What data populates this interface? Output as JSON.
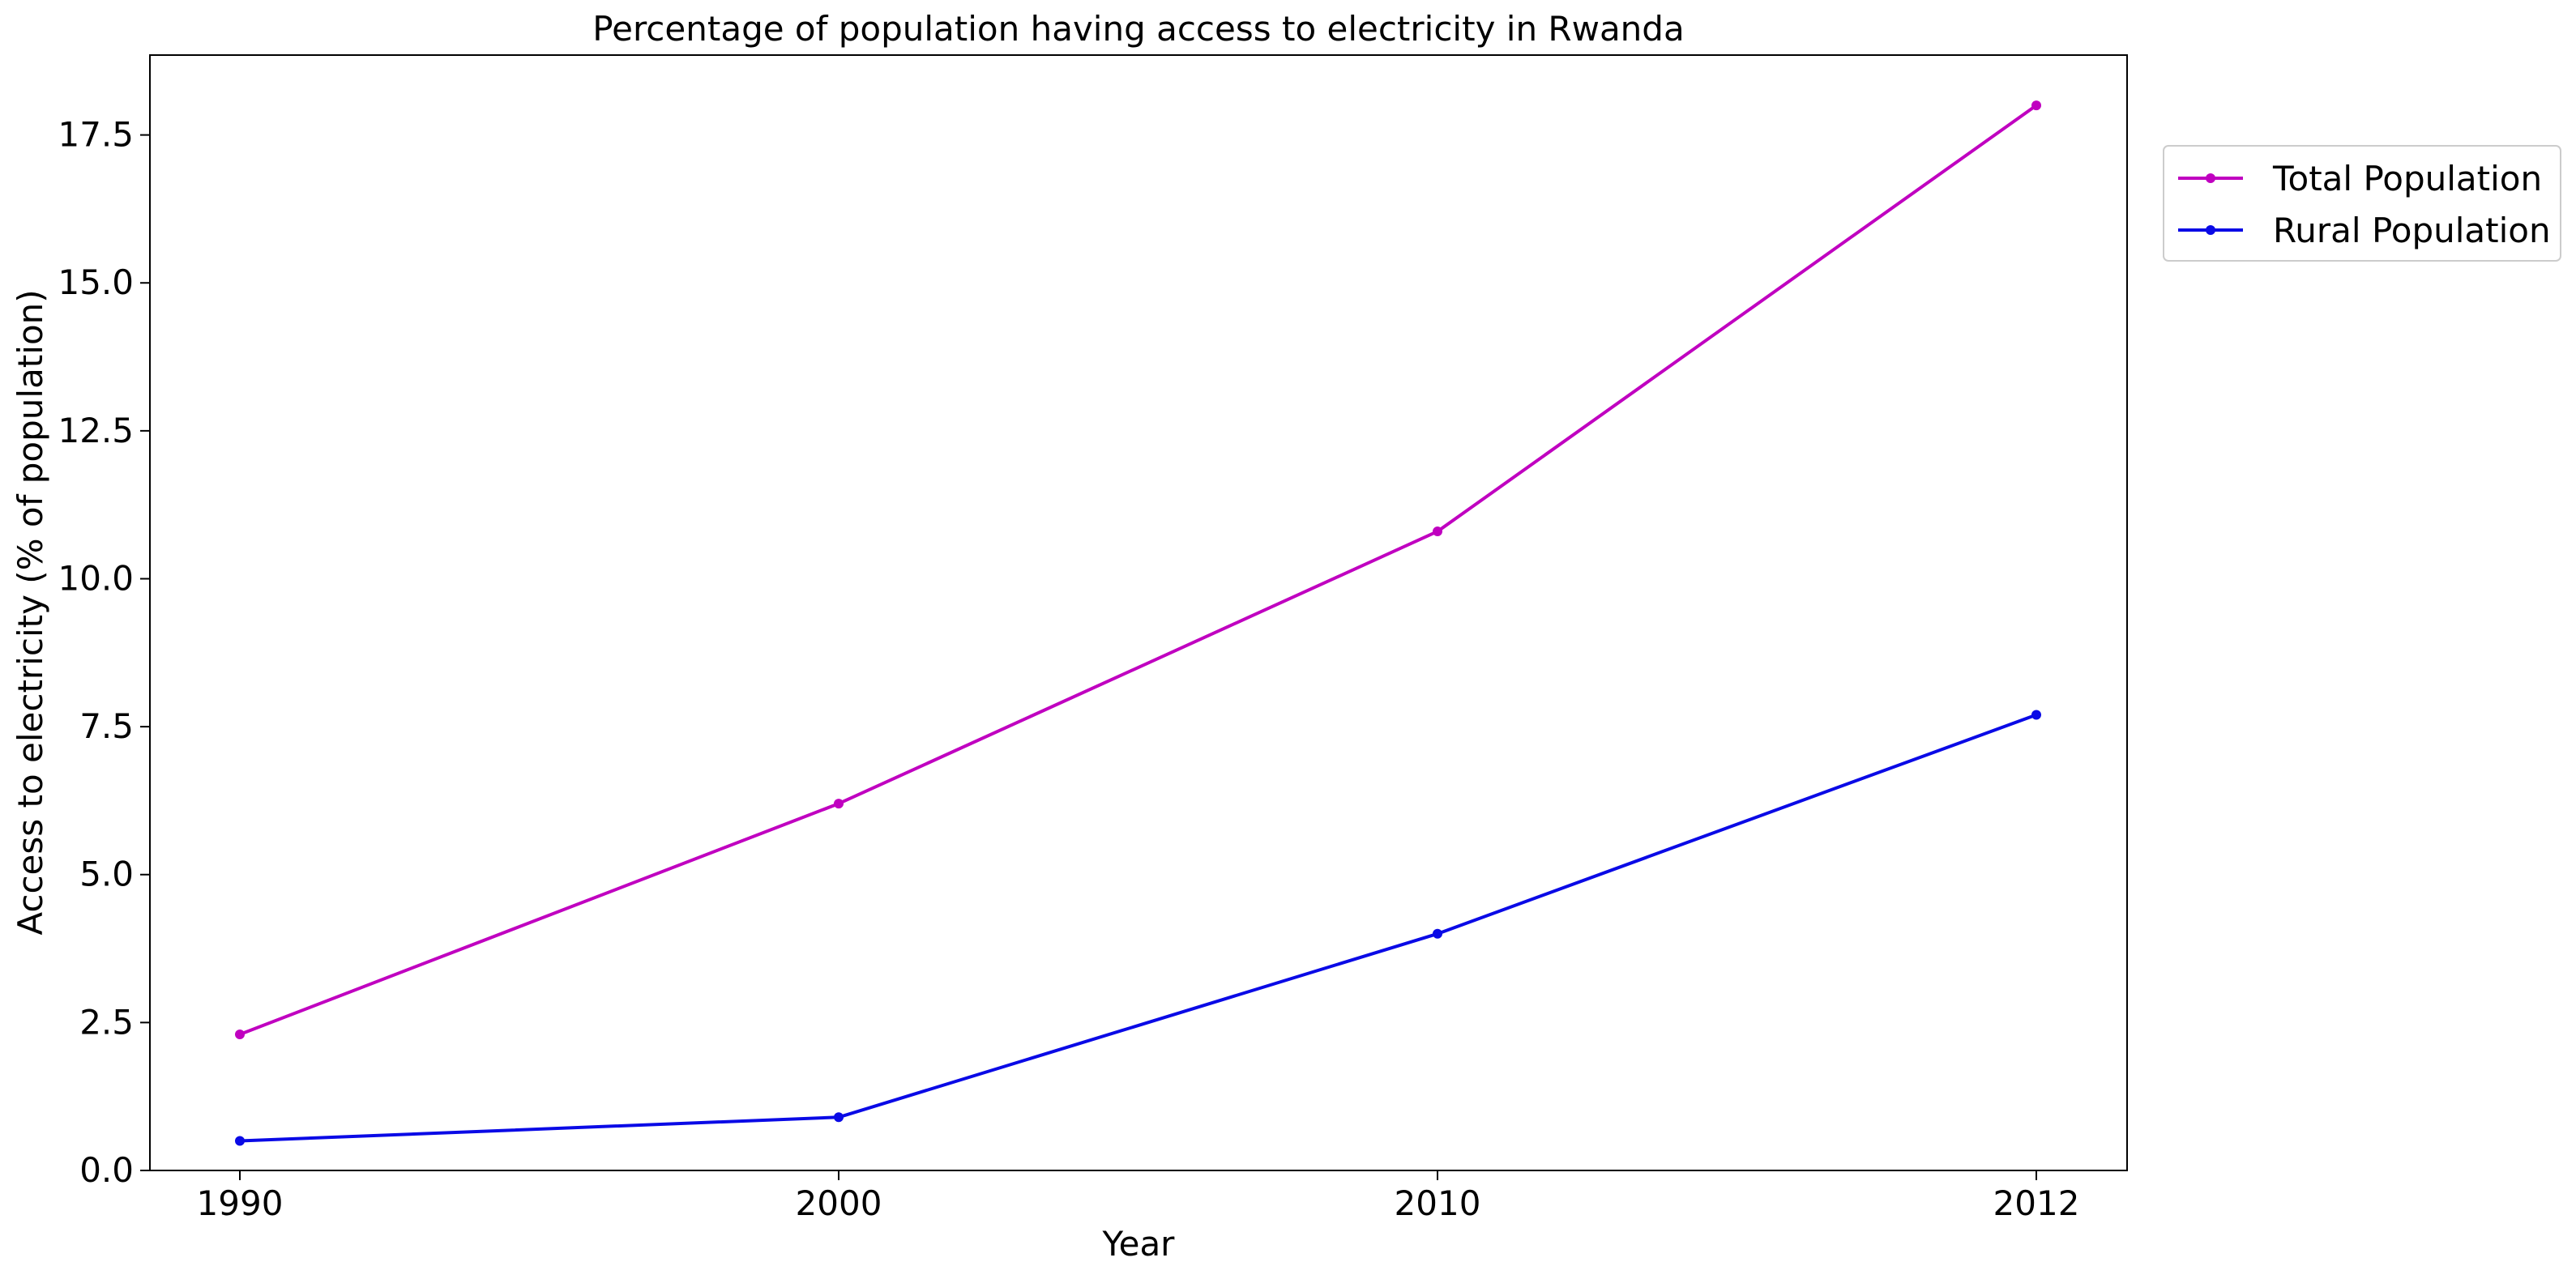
{
  "chart_data": {
    "type": "line",
    "title": "Percentage of population having access to electricity in Rwanda",
    "xlabel": "Year",
    "ylabel": "Access to electricity (% of population)",
    "categories": [
      "1990",
      "2000",
      "2010",
      "2012"
    ],
    "yticks": [
      "0.0",
      "2.5",
      "5.0",
      "7.5",
      "10.0",
      "12.5",
      "15.0",
      "17.5"
    ],
    "ylim": [
      0,
      18.85
    ],
    "grid": false,
    "legend_position": "outside-top-right",
    "series": [
      {
        "name": "Total Population",
        "color": "#c000c0",
        "values": [
          2.3,
          6.2,
          10.8,
          18.0
        ]
      },
      {
        "name": "Rural Population",
        "color": "#0a0ae6",
        "values": [
          0.5,
          0.9,
          4.0,
          7.7
        ]
      }
    ]
  }
}
